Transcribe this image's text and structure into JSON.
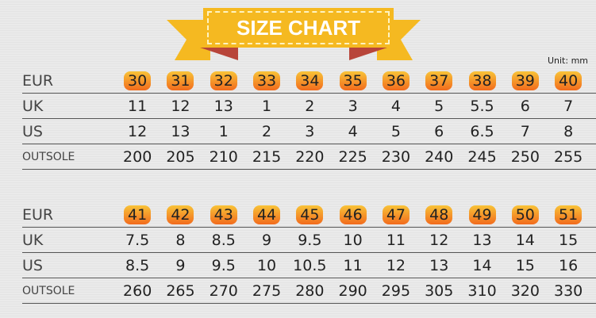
{
  "title": "SIZE CHART",
  "unit": "Unit:  mm",
  "colors": {
    "banner": "#f5b921",
    "badge_top": "#f8c338",
    "badge_bottom": "#f26b1d",
    "ribbon_fold": "#b8453a"
  },
  "tables": [
    {
      "rows": [
        {
          "label": "EUR",
          "values": [
            "30",
            "31",
            "32",
            "33",
            "34",
            "35",
            "36",
            "37",
            "38",
            "39",
            "40"
          ]
        },
        {
          "label": "UK",
          "values": [
            "11",
            "12",
            "13",
            "1",
            "2",
            "3",
            "4",
            "5",
            "5.5",
            "6",
            "7"
          ]
        },
        {
          "label": "US",
          "values": [
            "12",
            "13",
            "1",
            "2",
            "3",
            "4",
            "5",
            "6",
            "6.5",
            "7",
            "8"
          ]
        },
        {
          "label": "OUTSOLE",
          "values": [
            "200",
            "205",
            "210",
            "215",
            "220",
            "225",
            "230",
            "240",
            "245",
            "250",
            "255"
          ]
        }
      ]
    },
    {
      "rows": [
        {
          "label": "EUR",
          "values": [
            "41",
            "42",
            "43",
            "44",
            "45",
            "46",
            "47",
            "48",
            "49",
            "50",
            "51"
          ]
        },
        {
          "label": "UK",
          "values": [
            "7.5",
            "8",
            "8.5",
            "9",
            "9.5",
            "10",
            "11",
            "12",
            "13",
            "14",
            "15"
          ]
        },
        {
          "label": "US",
          "values": [
            "8.5",
            "9",
            "9.5",
            "10",
            "10.5",
            "11",
            "12",
            "13",
            "14",
            "15",
            "16"
          ]
        },
        {
          "label": "OUTSOLE",
          "values": [
            "260",
            "265",
            "270",
            "275",
            "280",
            "290",
            "295",
            "305",
            "310",
            "320",
            "330"
          ]
        }
      ]
    }
  ]
}
